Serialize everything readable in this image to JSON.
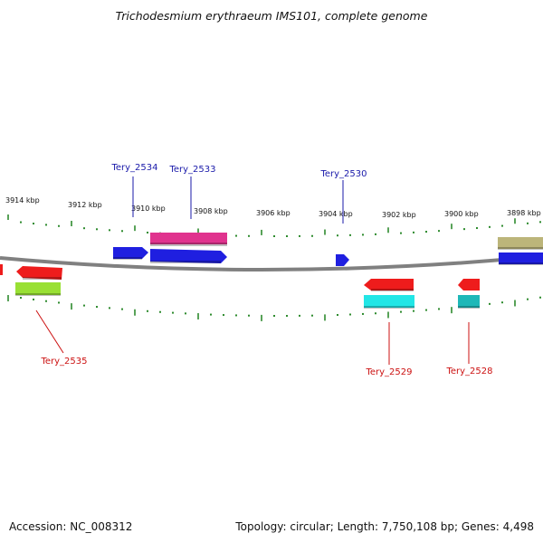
{
  "title": "Trichodesmium erythraeum IMS101, complete genome",
  "footer": {
    "accession": "Accession: NC_008312",
    "topology": "Topology: circular; Length: 7,750,108 bp; Genes: 4,498"
  },
  "ticks": [
    "3914 kbp",
    "3912 kbp",
    "3910 kbp",
    "3908 kbp",
    "3906 kbp",
    "3904 kbp",
    "3902 kbp",
    "3900 kbp",
    "3898 kbp"
  ],
  "labels": {
    "top": [
      "Tery_2534",
      "Tery_2533",
      "Tery_2530"
    ],
    "bottom": [
      "Tery_2535",
      "Tery_2529",
      "Tery_2528"
    ]
  },
  "colors": {
    "backbone": "#808080",
    "tick": "#2e8b2e",
    "top_label": "#1a1aaa",
    "bottom_label": "#cc1111",
    "blue": "#1f1fe0",
    "magenta": "#e0338e",
    "red": "#ee1c1c",
    "lime": "#99e034",
    "cyan": "#22e6e6",
    "teal": "#1fb8b8",
    "olive": "#bcb57a"
  }
}
